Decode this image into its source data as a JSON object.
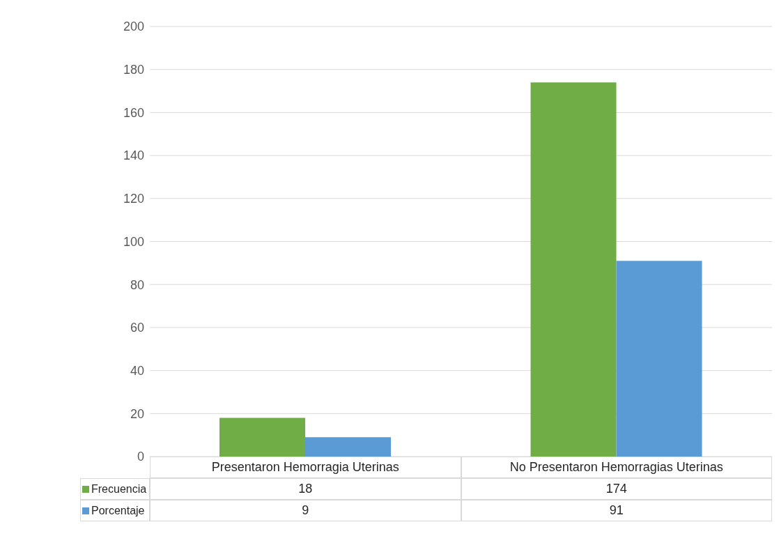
{
  "chart_data": {
    "type": "bar",
    "categories": [
      "Presentaron Hemorragia Uterinas",
      "No Presentaron Hemorragias Uterinas"
    ],
    "series": [
      {
        "name": "Frecuencia",
        "color": "#70ad47",
        "values": [
          18,
          174
        ]
      },
      {
        "name": "Porcentaje",
        "color": "#5b9bd5",
        "values": [
          9,
          91
        ]
      }
    ],
    "ylim": [
      0,
      200
    ],
    "yticks": [
      0,
      20,
      40,
      60,
      80,
      100,
      120,
      140,
      160,
      180,
      200
    ],
    "grid": "y",
    "legend": "bottom",
    "data_labels": true
  }
}
